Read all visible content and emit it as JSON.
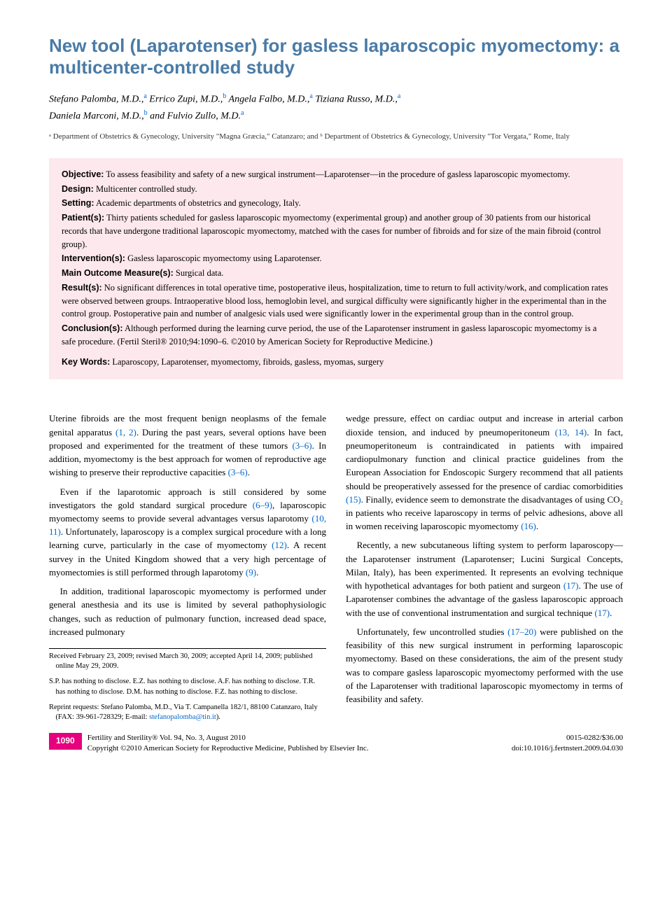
{
  "title": "New tool (Laparotenser) for gasless laparoscopic myomectomy: a multicenter-controlled study",
  "authors": [
    {
      "name": "Stefano Palomba, M.D.,",
      "aff": "a"
    },
    {
      "name": "Errico Zupi, M.D.,",
      "aff": "b"
    },
    {
      "name": "Angela Falbo, M.D.,",
      "aff": "a"
    },
    {
      "name": "Tiziana Russo, M.D.,",
      "aff": "a"
    },
    {
      "name": "Daniela Marconi, M.D.,",
      "aff": "b"
    },
    {
      "name": "and Fulvio Zullo, M.D.",
      "aff": "a"
    }
  ],
  "affiliations": "ᵃ Department of Obstetrics & Gynecology, University \"Magna Græcia,\" Catanzaro; and ᵇ Department of Obstetrics & Gynecology, University \"Tor Vergata,\" Rome, Italy",
  "abstract": {
    "objective": {
      "label": "Objective:",
      "text": "To assess feasibility and safety of a new surgical instrument—Laparotenser—in the procedure of gasless laparoscopic myomectomy."
    },
    "design": {
      "label": "Design:",
      "text": "Multicenter controlled study."
    },
    "setting": {
      "label": "Setting:",
      "text": "Academic departments of obstetrics and gynecology, Italy."
    },
    "patients": {
      "label": "Patient(s):",
      "text": "Thirty patients scheduled for gasless laparoscopic myomectomy (experimental group) and another group of 30 patients from our historical records that have undergone traditional laparoscopic myomectomy, matched with the cases for number of fibroids and for size of the main fibroid (control group)."
    },
    "interventions": {
      "label": "Intervention(s):",
      "text": "Gasless laparoscopic myomectomy using Laparotenser."
    },
    "outcome": {
      "label": "Main Outcome Measure(s):",
      "text": "Surgical data."
    },
    "results": {
      "label": "Result(s):",
      "text": "No significant differences in total operative time, postoperative ileus, hospitalization, time to return to full activity/work, and complication rates were observed between groups. Intraoperative blood loss, hemoglobin level, and surgical difficulty were significantly higher in the experimental than in the control group. Postoperative pain and number of analgesic vials used were significantly lower in the experimental group than in the control group."
    },
    "conclusions": {
      "label": "Conclusion(s):",
      "text": "Although performed during the learning curve period, the use of the Laparotenser instrument in gasless laparoscopic myomectomy is a safe procedure. (Fertil Steril® 2010;94:1090–6. ©2010 by American Society for Reproductive Medicine.)"
    },
    "keywords": {
      "label": "Key Words:",
      "text": "Laparoscopy, Laparotenser, myomectomy, fibroids, gasless, myomas, surgery"
    }
  },
  "body": {
    "p1a": "Uterine fibroids are the most frequent benign neoplasms of the female genital apparatus ",
    "p1_ref1": "(1, 2)",
    "p1b": ". During the past years, several options have been proposed and experimented for the treatment of these tumors ",
    "p1_ref2": "(3–6)",
    "p1c": ". In addition, myomectomy is the best approach for women of reproductive age wishing to preserve their reproductive capacities ",
    "p1_ref3": "(3–6)",
    "p1d": ".",
    "p2a": "Even if the laparotomic approach is still considered by some investigators the gold standard surgical procedure ",
    "p2_ref1": "(6–9)",
    "p2b": ", laparoscopic myomectomy seems to provide several advantages versus laparotomy ",
    "p2_ref2": "(10, 11)",
    "p2c": ". Unfortunately, laparoscopy is a complex surgical procedure with a long learning curve, particularly in the case of myomectomy ",
    "p2_ref3": "(12)",
    "p2d": ". A recent survey in the United Kingdom showed that a very high percentage of myomectomies is still performed through laparotomy ",
    "p2_ref4": "(9)",
    "p2e": ".",
    "p3": "In addition, traditional laparoscopic myomectomy is performed under general anesthesia and its use is limited by several pathophysiologic changes, such as reduction of pulmonary function, increased dead space, increased pulmonary",
    "p4a": "wedge pressure, effect on cardiac output and increase in arterial carbon dioxide tension, and induced by pneumoperitoneum ",
    "p4_ref1": "(13, 14)",
    "p4b": ". In fact, pneumoperitoneum is contraindicated in patients with impaired cardiopulmonary function and clinical practice guidelines from the European Association for Endoscopic Surgery recommend that all patients should be preoperatively assessed for the presence of cardiac comorbidities ",
    "p4_ref2": "(15)",
    "p4c": ". Finally, evidence seem to demonstrate the disadvantages of using CO₂ in patients who receive laparoscopy in terms of pelvic adhesions, above all in women receiving laparoscopic myomectomy ",
    "p4_ref3": "(16)",
    "p4d": ".",
    "p5a": "Recently, a new subcutaneous lifting system to perform laparoscopy—the Laparotenser instrument (Laparotenser; Lucini Surgical Concepts, Milan, Italy), has been experimented. It represents an evolving technique with hypothetical advantages for both patient and surgeon ",
    "p5_ref1": "(17)",
    "p5b": ". The use of Laparotenser combines the advantage of the gasless laparoscopic approach with the use of conventional instrumentation and surgical technique ",
    "p5_ref2": "(17)",
    "p5c": ".",
    "p6a": "Unfortunately, few uncontrolled studies ",
    "p6_ref1": "(17–20)",
    "p6b": " were published on the feasibility of this new surgical instrument in performing laparoscopic myomectomy. Based on these considerations, the aim of the present study was to compare gasless laparoscopic myomectomy performed with the use of the Laparotenser with traditional laparoscopic myomectomy in terms of feasibility and safety."
  },
  "footnotes": {
    "received": "Received February 23, 2009; revised March 30, 2009; accepted April 14, 2009; published online May 29, 2009.",
    "disclosure": "S.P. has nothing to disclose. E.Z. has nothing to disclose. A.F. has nothing to disclose. T.R. has nothing to disclose. D.M. has nothing to disclose. F.Z. has nothing to disclose.",
    "reprint_a": "Reprint requests: Stefano Palomba, M.D., Via T. Campanella 182/1, 88100 Catanzaro, Italy (FAX: 39-961-728329; E-mail: ",
    "reprint_email": "stefanopalomba@tin.it",
    "reprint_b": ")."
  },
  "footer": {
    "page": "1090",
    "journal": "Fertility and Sterility® Vol. 94, No. 3, August 2010",
    "copyright": "Copyright ©2010 American Society for Reproductive Medicine, Published by Elsevier Inc.",
    "issn": "0015-0282/$36.00",
    "doi": "doi:10.1016/j.fertnstert.2009.04.030"
  }
}
